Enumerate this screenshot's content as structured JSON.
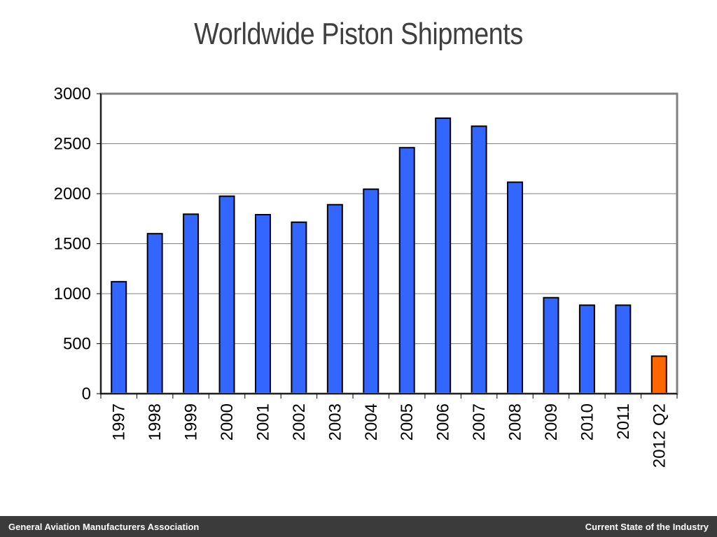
{
  "footer": {
    "left": "General Aviation Manufacturers Association",
    "right": "Current State of the Industry"
  },
  "chart_data": {
    "type": "bar",
    "title": "Worldwide Piston Shipments",
    "xlabel": "",
    "ylabel": "",
    "ylim": [
      0,
      3000
    ],
    "yticks": [
      0,
      500,
      1000,
      1500,
      2000,
      2500,
      3000
    ],
    "grid": true,
    "legend": "none",
    "categories": [
      "1997",
      "1998",
      "1999",
      "2000",
      "2001",
      "2002",
      "2003",
      "2004",
      "2005",
      "2006",
      "2007",
      "2008",
      "2009",
      "2010",
      "2011",
      "2012 Q2"
    ],
    "values": [
      1120,
      1600,
      1795,
      1975,
      1790,
      1715,
      1890,
      2045,
      2460,
      2755,
      2675,
      2115,
      960,
      885,
      885,
      375
    ],
    "colors": {
      "bar": "#3366ff",
      "highlight": "#ff6600",
      "bar_outline": "#000000",
      "grid": "#7f7f7f",
      "frame": "#808080"
    },
    "highlight_index": 15
  }
}
